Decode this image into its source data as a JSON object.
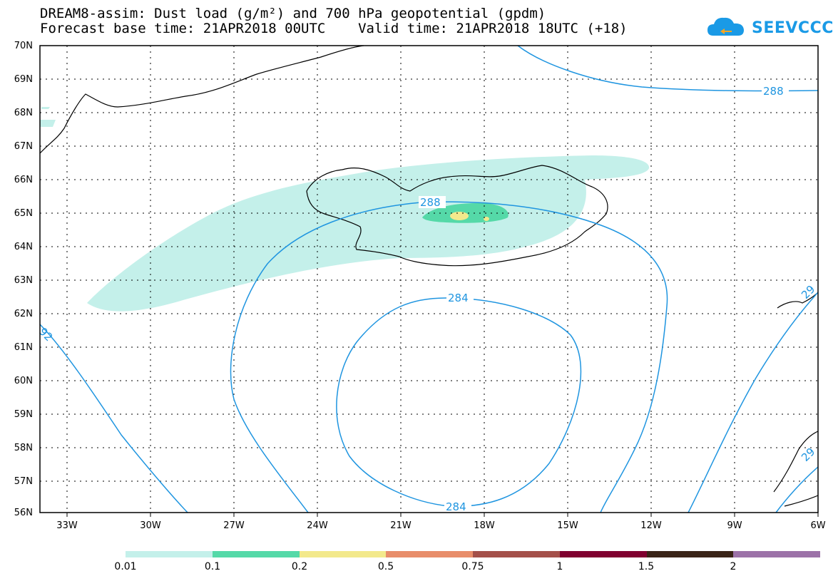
{
  "title": {
    "line1": "DREAM8-assim: Dust load (g/m²) and 700 hPa geopotential (gpdm)",
    "line2": "Forecast base time: 21APR2018 00UTC    Valid time: 21APR2018 18UTC (+18)"
  },
  "logo": {
    "text": "SEEVCCC",
    "icon": "cloud-icon",
    "color": "#1a9ae6"
  },
  "map": {
    "lat_labels": [
      "70N",
      "69N",
      "68N",
      "67N",
      "66N",
      "65N",
      "64N",
      "63N",
      "62N",
      "61N",
      "60N",
      "59N",
      "58N",
      "57N",
      "56N"
    ],
    "lon_labels": [
      "33W",
      "30W",
      "27W",
      "24W",
      "21W",
      "18W",
      "15W",
      "12W",
      "9W",
      "6W"
    ],
    "contour_color": "#1f95e0",
    "contour_labels": [
      "288",
      "288",
      "284",
      "284",
      "92",
      "29",
      "29"
    ]
  },
  "legend": {
    "labels": [
      "0.01",
      "0.1",
      "0.2",
      "0.5",
      "0.75",
      "1",
      "1.5",
      "2"
    ],
    "colors": [
      "#c4f0ea",
      "#55d9a8",
      "#f3e98c",
      "#e88d6a",
      "#a4504a",
      "#800030",
      "#3a2418",
      "#9c72a8"
    ]
  }
}
